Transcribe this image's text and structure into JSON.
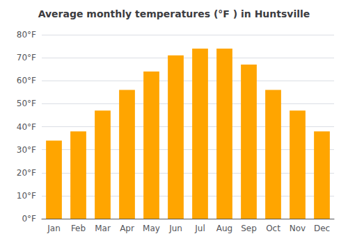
{
  "chart_data": {
    "type": "bar",
    "title": "Average monthly temperatures (°F ) in Huntsville",
    "categories": [
      "Jan",
      "Feb",
      "Mar",
      "Apr",
      "May",
      "Jun",
      "Jul",
      "Aug",
      "Sep",
      "Oct",
      "Nov",
      "Dec"
    ],
    "values": [
      34,
      38,
      47,
      56,
      64,
      71,
      74,
      74,
      67,
      56,
      47,
      38
    ],
    "color": "#FFA500",
    "ylim": [
      0,
      80
    ],
    "yticks": [
      {
        "value": 0,
        "label": "0°F"
      },
      {
        "value": 10,
        "label": "10°F"
      },
      {
        "value": 20,
        "label": "20°F"
      },
      {
        "value": 30,
        "label": "30°F"
      },
      {
        "value": 40,
        "label": "40°F"
      },
      {
        "value": 50,
        "label": "50°F"
      },
      {
        "value": 60,
        "label": "60°F"
      },
      {
        "value": 70,
        "label": "70°F"
      },
      {
        "value": 80,
        "label": "80°F"
      }
    ],
    "grid": true
  }
}
